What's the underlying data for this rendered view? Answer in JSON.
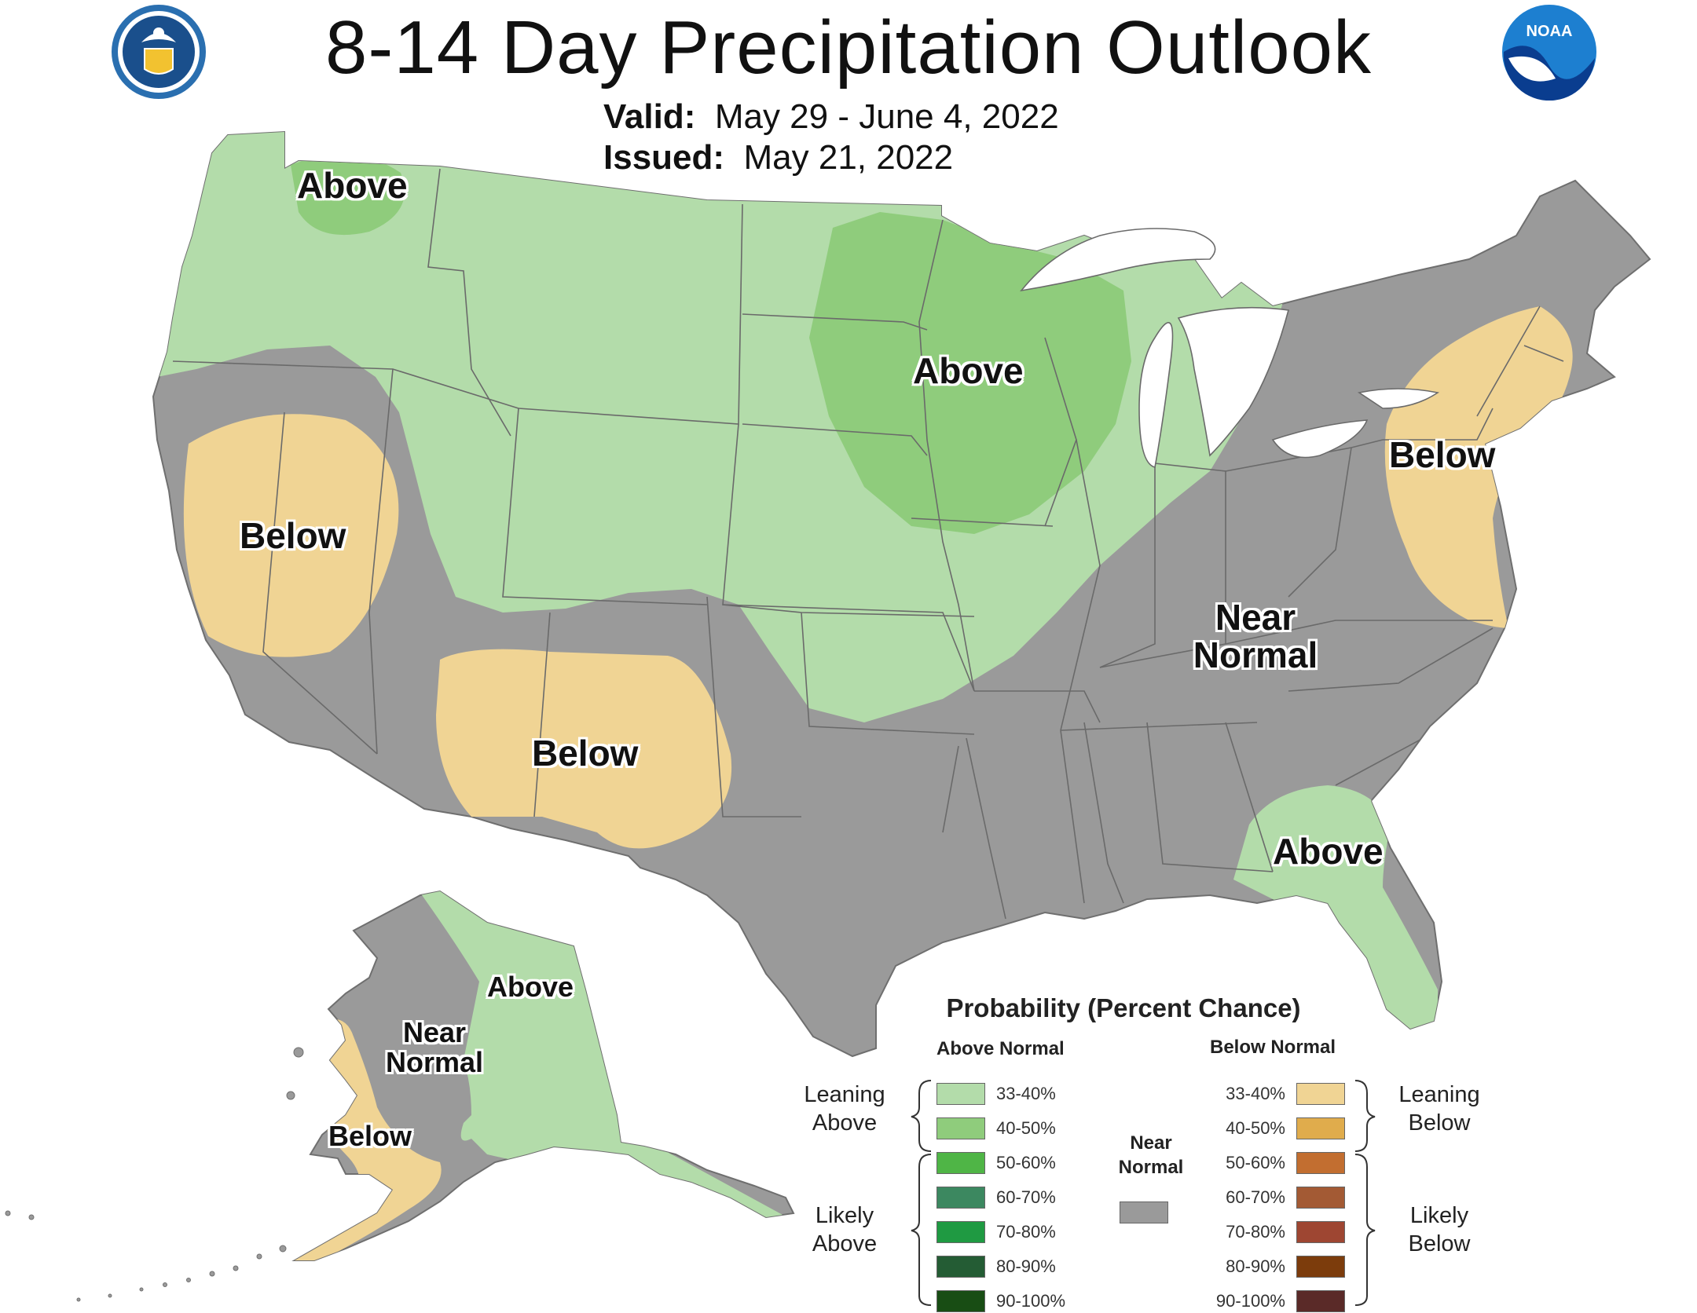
{
  "title": "8-14 Day Precipitation Outlook",
  "valid": {
    "label": "Valid:",
    "value": "May 29 - June 4, 2022"
  },
  "issued": {
    "label": "Issued:",
    "value": "May 21, 2022"
  },
  "logos": {
    "left": "doc-seal-icon",
    "right": "noaa-logo-icon"
  },
  "colors": {
    "above_33_40": "#b3dcaa",
    "above_40_50": "#8fcc7c",
    "below_33_40": "#f0d494",
    "near_normal": "#9a9a9a",
    "no_data": "#ffffff"
  },
  "regions": {
    "wa_above": "Above",
    "midwest_above": "Above",
    "ca_below": "Below",
    "sw_below": "Below",
    "ne_below": "Below",
    "se_near_1": "Near",
    "se_near_2": "Normal",
    "fl_above": "Above",
    "ak_above": "Above",
    "ak_near_1": "Near",
    "ak_near_2": "Normal",
    "ak_below": "Below"
  },
  "legend": {
    "title": "Probability (Percent Chance)",
    "above_header": "Above Normal",
    "below_header": "Below Normal",
    "near_header_1": "Near",
    "near_header_2": "Normal",
    "leaning_above_1": "Leaning",
    "leaning_above_2": "Above",
    "likely_above_1": "Likely",
    "likely_above_2": "Above",
    "leaning_below_1": "Leaning",
    "leaning_below_2": "Below",
    "likely_below_1": "Likely",
    "likely_below_2": "Below",
    "above": [
      {
        "label": "33-40%",
        "color": "#b3dcaa"
      },
      {
        "label": "40-50%",
        "color": "#8fcc7c"
      },
      {
        "label": "50-60%",
        "color": "#4fb546"
      },
      {
        "label": "60-70%",
        "color": "#3c8860"
      },
      {
        "label": "70-80%",
        "color": "#1f9a42"
      },
      {
        "label": "80-90%",
        "color": "#245c34"
      },
      {
        "label": "90-100%",
        "color": "#184d14"
      }
    ],
    "below": [
      {
        "label": "33-40%",
        "color": "#f0d494"
      },
      {
        "label": "40-50%",
        "color": "#e0ac4c"
      },
      {
        "label": "50-60%",
        "color": "#c26e30"
      },
      {
        "label": "60-70%",
        "color": "#a35a34"
      },
      {
        "label": "70-80%",
        "color": "#9e4632"
      },
      {
        "label": "80-90%",
        "color": "#7c3c0c"
      },
      {
        "label": "90-100%",
        "color": "#5a2a28"
      }
    ],
    "near_color": "#9a9a9a"
  }
}
